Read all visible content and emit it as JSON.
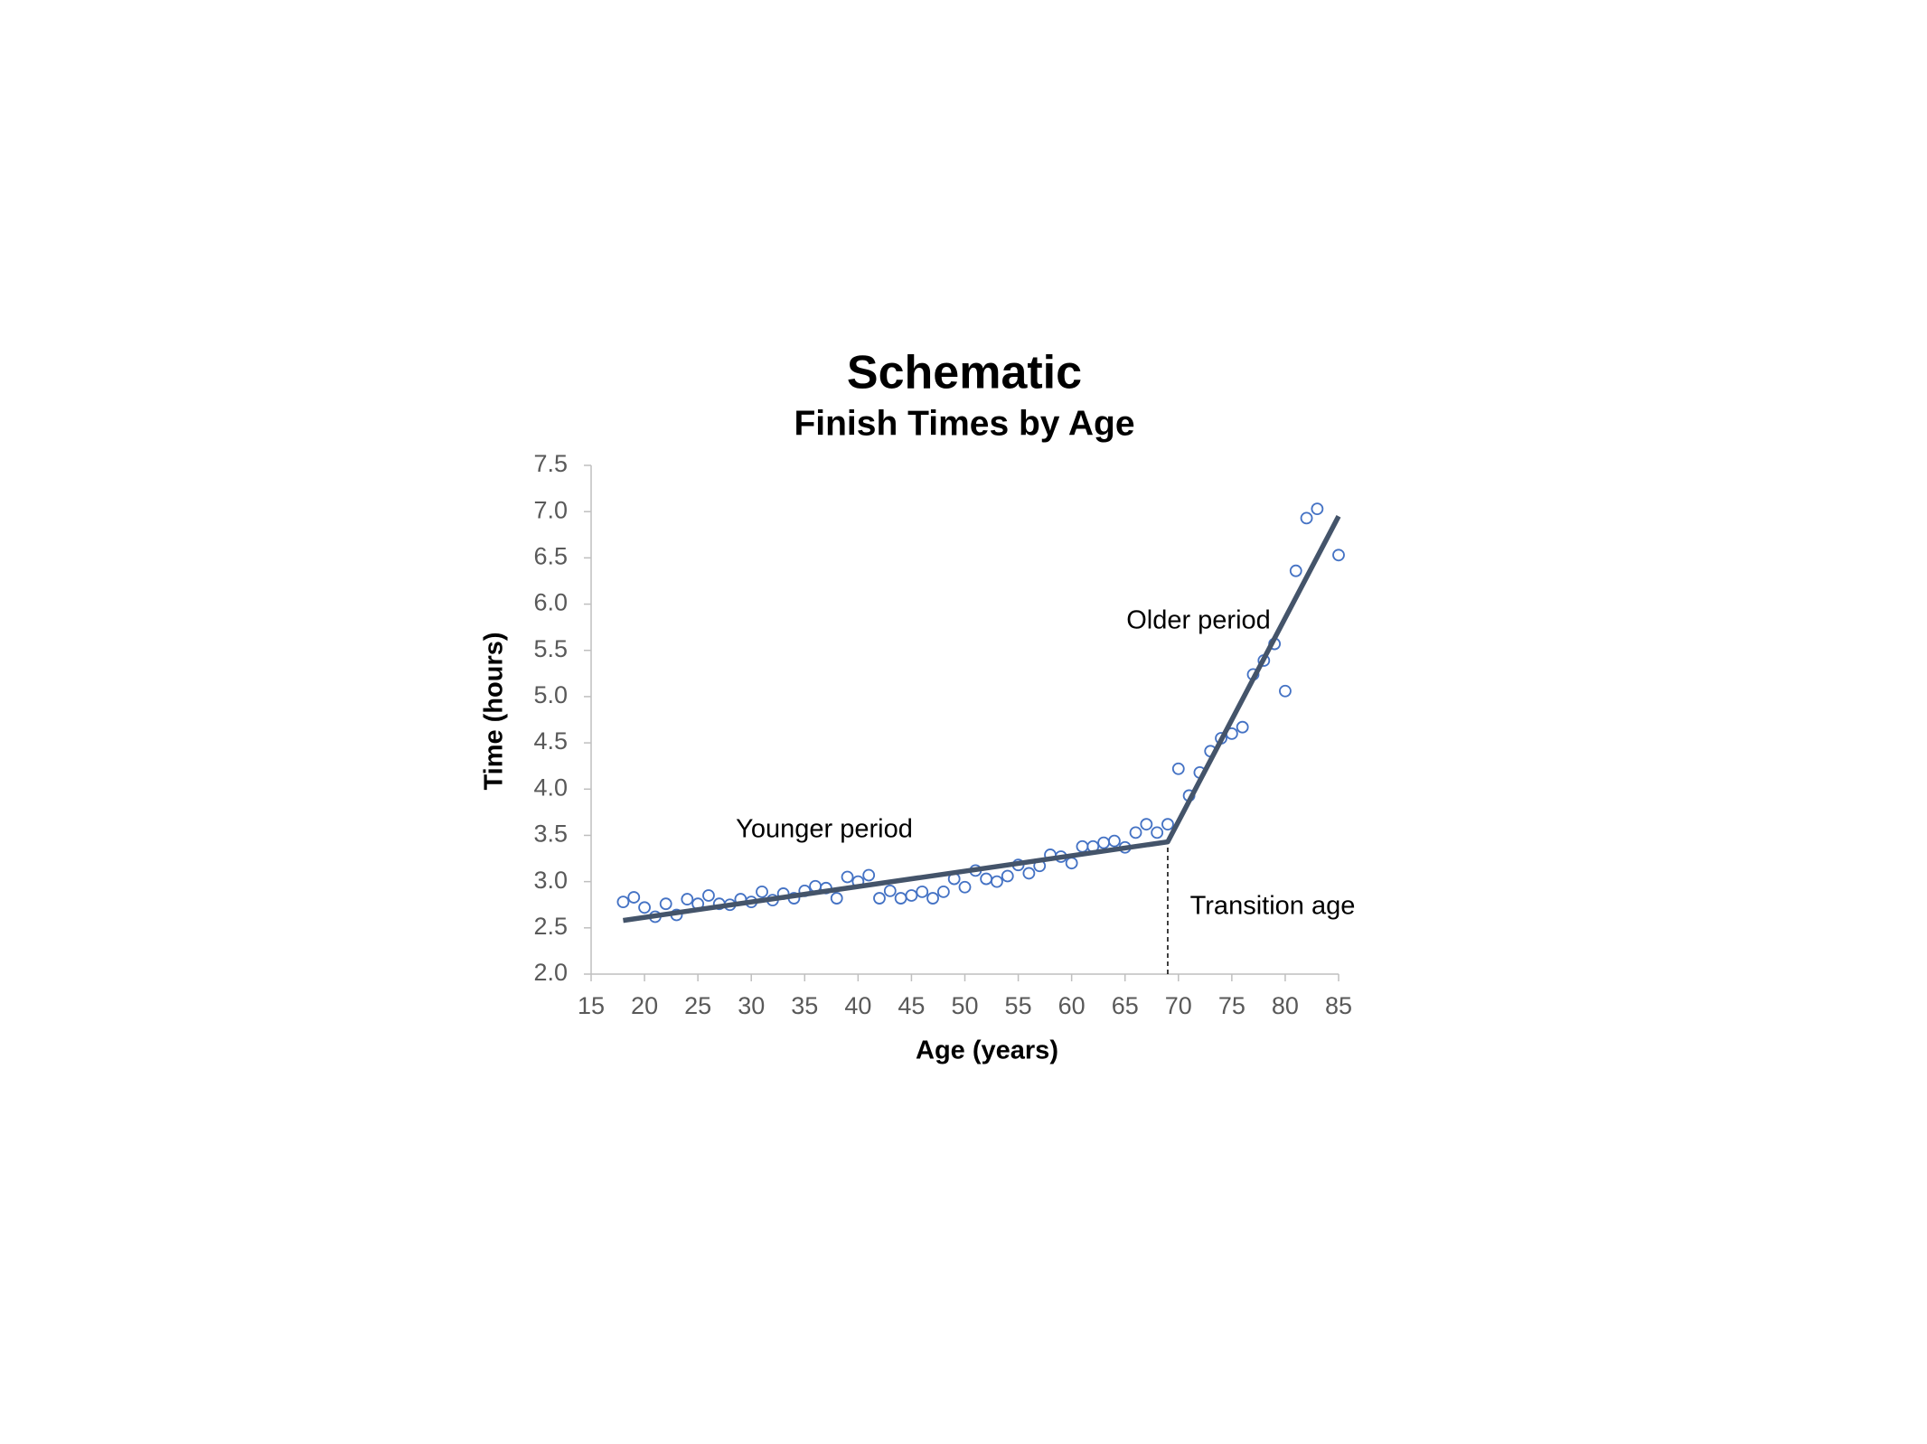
{
  "chart_data": {
    "type": "scatter",
    "title": "Schematic",
    "subtitle": "Finish Times by Age",
    "x_label": "Age (years)",
    "y_label": "Time (hours)",
    "xlim": [
      15,
      85
    ],
    "xticks": [
      15,
      20,
      25,
      30,
      35,
      40,
      45,
      50,
      55,
      60,
      65,
      70,
      75,
      80,
      85
    ],
    "ylim": [
      2,
      7.5
    ],
    "yticks": [
      {
        "value": 2,
        "label": "2.0"
      },
      2.5,
      {
        "value": 3,
        "label": "3.0"
      },
      3.5,
      {
        "value": 4,
        "label": "4.0"
      },
      4.5,
      {
        "value": 5,
        "label": "5.0"
      },
      5.5,
      {
        "value": 6,
        "label": "6.0"
      },
      6.5,
      {
        "value": 7,
        "label": "7.0"
      },
      7.5
    ],
    "points": {
      "color": "#4472c4",
      "x": [
        18,
        19,
        20,
        21,
        22,
        23,
        24,
        25,
        26,
        27,
        28,
        29,
        30,
        31,
        32,
        33,
        34,
        35,
        36,
        37,
        38,
        39,
        40,
        41,
        42,
        43,
        44,
        45,
        46,
        47,
        48,
        49,
        50,
        51,
        52,
        53,
        54,
        55,
        56,
        57,
        58,
        59,
        60,
        61,
        62,
        63,
        64,
        65,
        66,
        67,
        68,
        69,
        70,
        71,
        72,
        73,
        74,
        75,
        76,
        77,
        78,
        79,
        80,
        81,
        82,
        83,
        85
      ],
      "values": [
        2.78,
        2.83,
        2.72,
        2.62,
        2.76,
        2.64,
        2.81,
        2.76,
        2.85,
        2.76,
        2.75,
        2.81,
        2.78,
        2.89,
        2.8,
        2.87,
        2.82,
        2.9,
        2.95,
        2.93,
        2.82,
        3.05,
        3.0,
        3.07,
        2.82,
        2.9,
        2.82,
        2.85,
        2.89,
        2.82,
        2.89,
        3.03,
        2.94,
        3.12,
        3.03,
        3.0,
        3.06,
        3.18,
        3.09,
        3.17,
        3.29,
        3.27,
        3.2,
        3.38,
        3.38,
        3.42,
        3.44,
        3.37,
        3.53,
        3.62,
        3.53,
        3.62,
        4.22,
        3.93,
        4.18,
        4.41,
        4.55,
        4.6,
        4.67,
        5.24,
        5.39,
        5.57,
        5.06,
        6.36,
        6.93,
        7.03,
        6.53
      ]
    },
    "fit": {
      "color": "#44546a",
      "x": [
        18,
        69,
        85
      ],
      "values": [
        2.58,
        3.43,
        6.95
      ]
    },
    "transition_x": 69,
    "annotations": [
      "Younger period",
      "Older period",
      "Transition age"
    ]
  }
}
